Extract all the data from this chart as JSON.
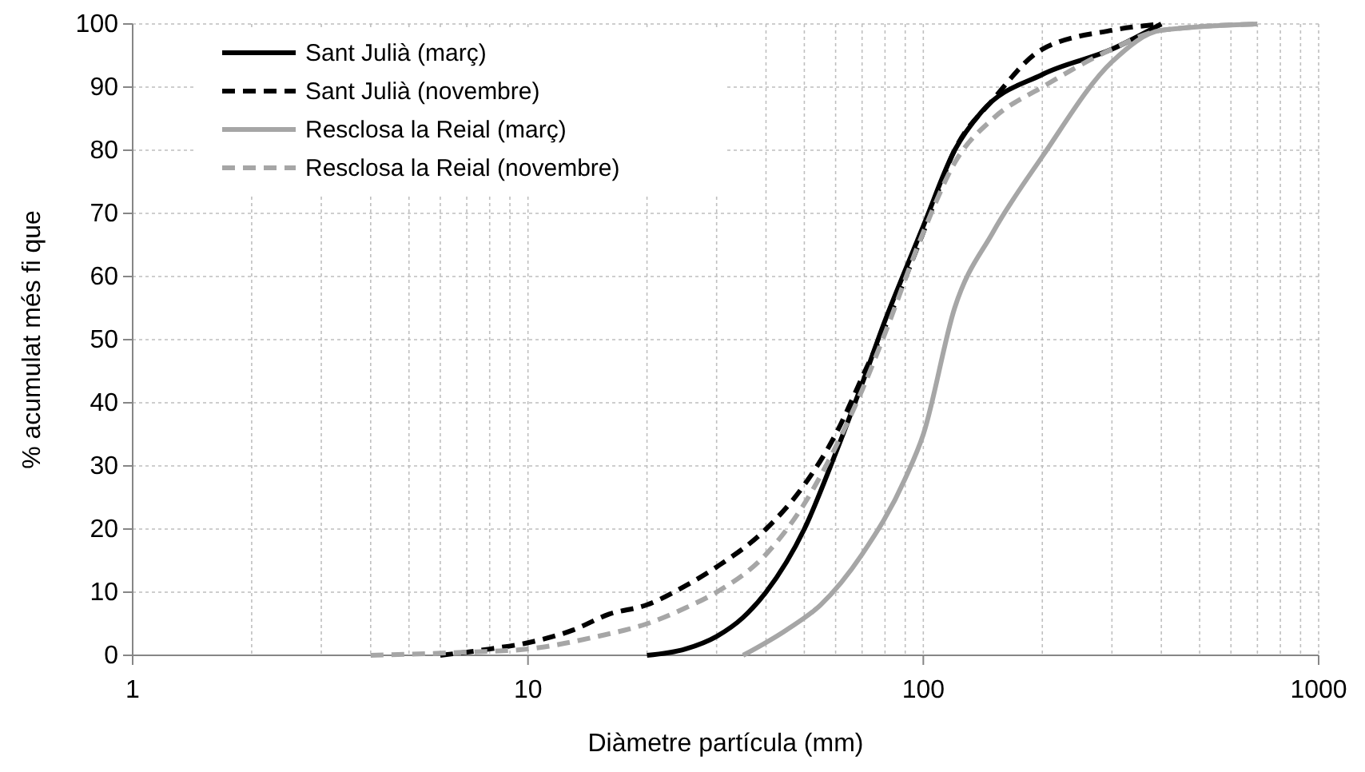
{
  "chart_data": {
    "type": "line",
    "xlabel": "Diàmetre partícula (mm)",
    "ylabel": "% acumulat més fi que",
    "log": "x",
    "xlim": [
      1,
      1000
    ],
    "xticks": [
      1,
      10,
      100,
      1000
    ],
    "ylim": [
      0,
      100
    ],
    "yticks": [
      0,
      10,
      20,
      30,
      40,
      50,
      60,
      70,
      80,
      90,
      100
    ],
    "grid": true,
    "legend": "top left",
    "marker": "none",
    "series": [
      {
        "name": "Sant Julià (març)",
        "color": "#000000",
        "line_style": "solid",
        "x": [
          20,
          25,
          30,
          35,
          40,
          50,
          60,
          70,
          80,
          90,
          100,
          120,
          140,
          200,
          300,
          400
        ],
        "values": [
          0,
          1,
          3,
          6,
          10,
          20,
          32,
          43,
          53,
          61,
          68,
          80,
          86,
          92,
          96,
          100
        ]
      },
      {
        "name": "Sant Julià (novembre)",
        "color": "#000000",
        "line_style": "dashed",
        "x": [
          6,
          8,
          10,
          13,
          16,
          20,
          25,
          30,
          40,
          50,
          60,
          70,
          80,
          100,
          120,
          150,
          200,
          300,
          400
        ],
        "values": [
          0,
          1,
          2,
          4,
          6.5,
          8,
          11,
          14,
          20,
          27,
          35,
          44,
          52,
          67,
          80,
          88,
          96,
          99,
          100
        ]
      },
      {
        "name": "Resclosa la Reial (març)",
        "color": "#a6a6a6",
        "line_style": "solid",
        "x": [
          35,
          45,
          55,
          70,
          90,
          100,
          120,
          150,
          200,
          300,
          400,
          700
        ],
        "values": [
          0,
          4,
          8,
          16,
          28,
          35,
          55,
          67,
          79,
          94,
          99,
          100
        ]
      },
      {
        "name": "Resclosa la Reial (novembre)",
        "color": "#a6a6a6",
        "line_style": "dashed",
        "x": [
          4,
          7,
          10,
          15,
          20,
          25,
          30,
          40,
          50,
          60,
          70,
          80,
          100,
          120,
          150,
          200,
          300,
          400,
          700
        ],
        "values": [
          0,
          0.5,
          1,
          3,
          5,
          7.5,
          10,
          16,
          24,
          33,
          42,
          51,
          67,
          78,
          85,
          90,
          96,
          99,
          100
        ]
      }
    ]
  }
}
